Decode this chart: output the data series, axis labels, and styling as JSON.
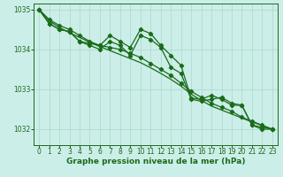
{
  "title": "Graphe pression niveau de la mer (hPa)",
  "background_color": "#cceee8",
  "line_color": "#1a6b1a",
  "grid_color": "#aad8cc",
  "xlim": [
    -0.5,
    23.5
  ],
  "ylim": [
    1031.6,
    1035.15
  ],
  "yticks": [
    1032,
    1033,
    1034,
    1035
  ],
  "xticks": [
    0,
    1,
    2,
    3,
    4,
    5,
    6,
    7,
    8,
    9,
    10,
    11,
    12,
    13,
    14,
    15,
    16,
    17,
    18,
    19,
    20,
    21,
    22,
    23
  ],
  "series": [
    [
      1035.0,
      1034.65,
      1034.5,
      1034.45,
      1034.2,
      1034.15,
      1034.1,
      1034.35,
      1034.2,
      1034.05,
      1034.5,
      1034.4,
      1034.1,
      1033.85,
      1033.6,
      1032.78,
      1032.75,
      1032.85,
      1032.75,
      1032.6,
      1032.6,
      1032.1,
      1032.05,
      1032.0
    ],
    [
      1035.0,
      1034.75,
      1034.6,
      1034.5,
      1034.35,
      1034.2,
      1034.1,
      1034.05,
      1034.0,
      1033.9,
      1033.8,
      1033.65,
      1033.5,
      1033.35,
      1033.15,
      1032.95,
      1032.8,
      1032.65,
      1032.55,
      1032.45,
      1032.3,
      1032.2,
      1032.1,
      1032.0
    ],
    [
      1035.0,
      1034.65,
      1034.5,
      1034.45,
      1034.2,
      1034.1,
      1034.0,
      1034.2,
      1034.1,
      1033.85,
      1034.35,
      1034.25,
      1034.05,
      1033.55,
      1033.4,
      1032.75,
      1032.7,
      1032.75,
      1032.8,
      1032.65,
      1032.6,
      1032.1,
      1032.0,
      1032.0
    ]
  ],
  "smooth_line": [
    1035.0,
    1034.72,
    1034.55,
    1034.42,
    1034.3,
    1034.18,
    1034.07,
    1033.97,
    1033.87,
    1033.77,
    1033.67,
    1033.54,
    1033.4,
    1033.25,
    1033.08,
    1032.88,
    1032.72,
    1032.58,
    1032.48,
    1032.38,
    1032.28,
    1032.18,
    1032.09,
    1032.0
  ],
  "marker": "D",
  "marker_size": 2.2,
  "linewidth": 0.9,
  "title_fontsize": 6.5,
  "tick_fontsize": 5.5
}
